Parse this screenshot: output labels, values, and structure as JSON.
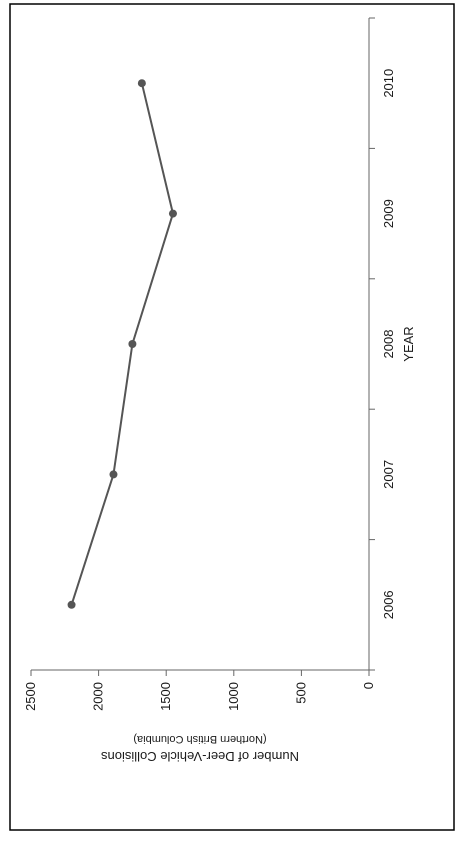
{
  "chart_data": {
    "type": "line",
    "title": "",
    "xlabel": "YEAR",
    "ylabel": "Number of Deer-Vehicle Collisions",
    "ylabel_sub": "(Northern British Columbia)",
    "categories": [
      "2006",
      "2007",
      "2008",
      "2009",
      "2010"
    ],
    "series": [
      {
        "values": [
          2200,
          1890,
          1750,
          1450,
          1680
        ]
      }
    ],
    "y_ticks": [
      "0",
      "500",
      "1000",
      "1500",
      "2000",
      "2500"
    ],
    "ylim": [
      0,
      2500
    ],
    "grid": false,
    "legend": "none",
    "orientation": "rotated 90° clockwise",
    "colors": {
      "line": "#555555",
      "marker": "#555555",
      "axis": "#666666",
      "frame": "#000000"
    }
  }
}
